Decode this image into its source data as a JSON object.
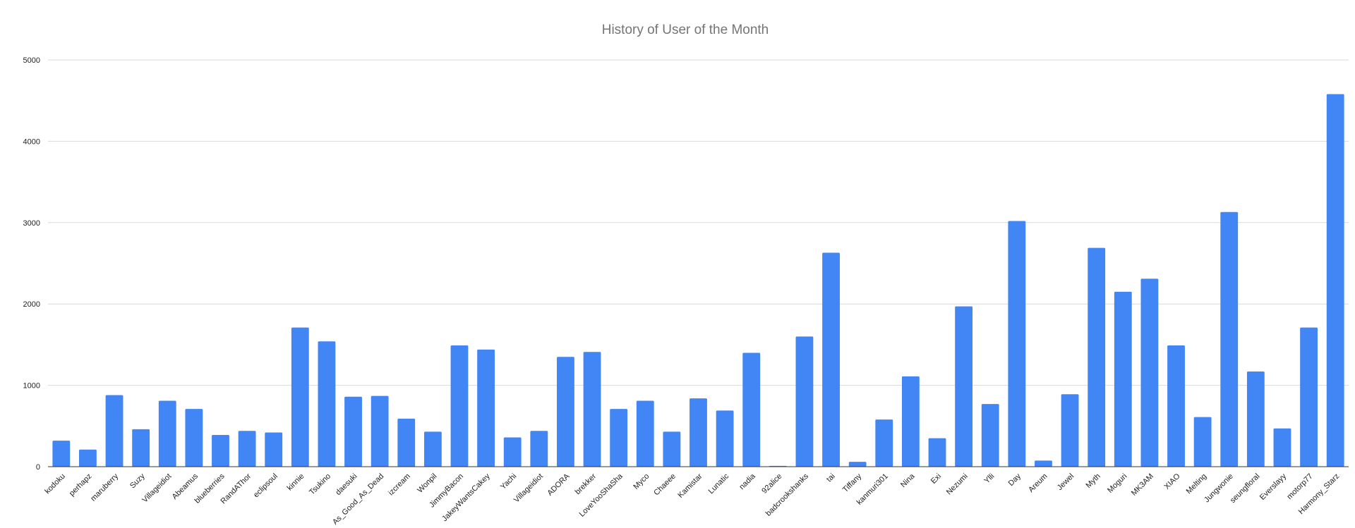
{
  "chart_data": {
    "type": "bar",
    "title": "History of User of the Month",
    "xlabel": "",
    "ylabel": "",
    "ylim": [
      0,
      5000
    ],
    "yticks": [
      0,
      1000,
      2000,
      3000,
      4000,
      5000
    ],
    "grid": true,
    "legend": "none",
    "bar_color": "#4285f4",
    "grid_color": "#d9d9d9",
    "axis_color": "#333333",
    "title_color": "#757575",
    "categories": [
      "kodoku",
      "perhapz",
      "maruberry",
      "Suzy",
      "Villageidiot",
      "Abeamus",
      "blueberries",
      "RandAThor",
      "eclipsoul",
      "kinnie",
      "Tsukino",
      "daesuki",
      "As_Good_As_Dead",
      "izcream",
      "Wonpil",
      "JimmyBacon",
      "JakeyWantsCakey",
      "Yachi",
      "Villageidiot",
      "ADORA",
      "brekker",
      "LoveYooShaSha",
      "Myco",
      "Chaeee",
      "Kamistar",
      "Lunatic",
      "nadia",
      "92alice",
      "badcrookshanks",
      "tai",
      "Tiffany",
      "kanmuri301",
      "Nina",
      "Exi",
      "Nezumi",
      "Ylli",
      "Day",
      "Areum",
      "Jewel",
      "Myth",
      "Moguri",
      "MK3AM",
      "XIAO",
      "Melting",
      "Jungwonie",
      "seungfloral",
      "Everslayy",
      "motorp77",
      "Harmony_Starz"
    ],
    "values": [
      320,
      210,
      880,
      460,
      810,
      710,
      390,
      440,
      420,
      1710,
      1540,
      860,
      870,
      590,
      430,
      1490,
      1440,
      360,
      440,
      1350,
      1410,
      710,
      810,
      430,
      840,
      690,
      1400,
      10,
      1600,
      2630,
      60,
      580,
      1110,
      350,
      1970,
      770,
      3020,
      75,
      890,
      2690,
      2150,
      2310,
      1490,
      610,
      3130,
      1170,
      470,
      1710,
      4580
    ]
  }
}
